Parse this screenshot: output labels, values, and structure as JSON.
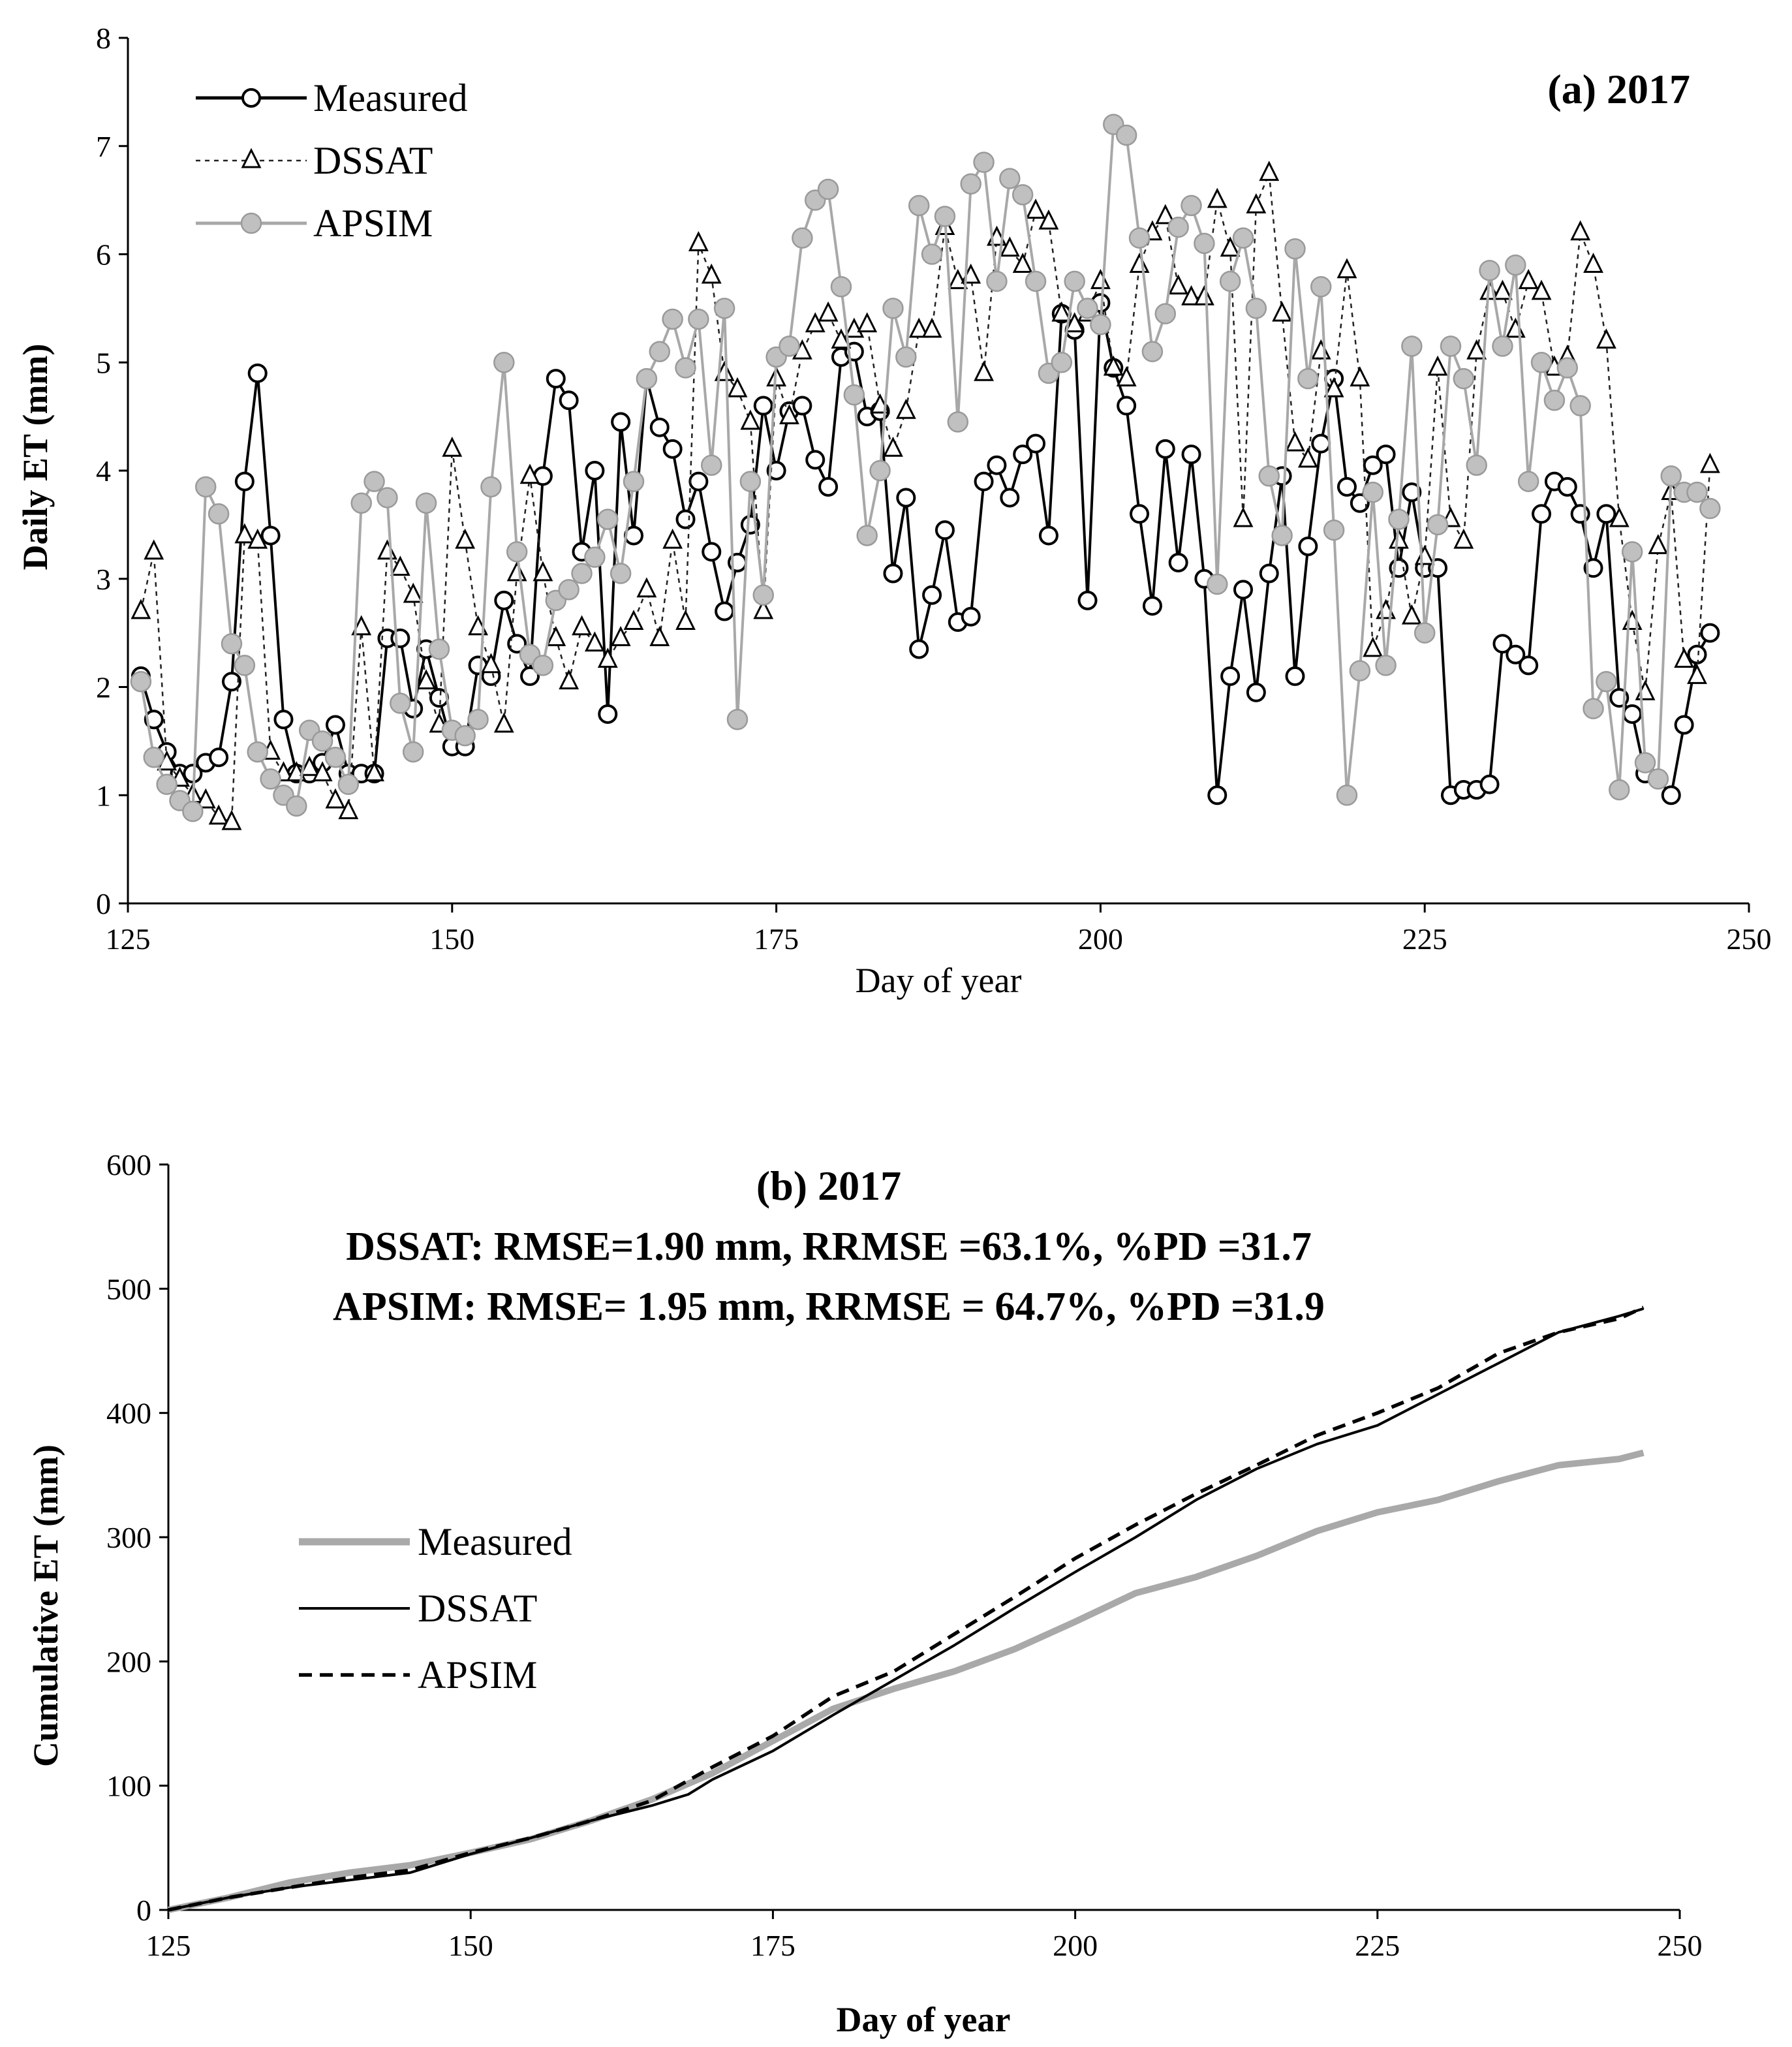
{
  "chart_data": [
    {
      "type": "line",
      "panel": "a",
      "title": "(a) 2017",
      "xlabel": "Day of year",
      "ylabel": "Daily ET (mm)",
      "xlim": [
        125,
        250
      ],
      "ylim": [
        0,
        8
      ],
      "xticks": [
        "125",
        "150",
        "175",
        "200",
        "225",
        "250"
      ],
      "yticks": [
        "0",
        "1",
        "2",
        "3",
        "4",
        "5",
        "6",
        "7",
        "8"
      ],
      "legend_position": "top-left",
      "legend": [
        "Measured",
        "DSSAT",
        "APSIM"
      ],
      "series": [
        {
          "name": "Measured",
          "style": "solid black line, open circle markers",
          "x": [
            126,
            127,
            128,
            129,
            130,
            131,
            132,
            133,
            134,
            135,
            136,
            137,
            138,
            139,
            140,
            141,
            142,
            143,
            144,
            145,
            146,
            147,
            148,
            149,
            150,
            151,
            152,
            153,
            154,
            155,
            156,
            157,
            158,
            159,
            160,
            161,
            162,
            163,
            164,
            165,
            166,
            167,
            168,
            169,
            170,
            171,
            172,
            173,
            174,
            175,
            176,
            177,
            178,
            179,
            180,
            181,
            182,
            183,
            184,
            185,
            186,
            187,
            188,
            189,
            190,
            191,
            192,
            193,
            194,
            195,
            196,
            197,
            198,
            199,
            200,
            201,
            202,
            203,
            204,
            205,
            206,
            207,
            208,
            209,
            210,
            211,
            212,
            213,
            214,
            215,
            216,
            217,
            218,
            219,
            220,
            221,
            222,
            223,
            224,
            225,
            226,
            227,
            228,
            229,
            230,
            231,
            232,
            233,
            234,
            235,
            236,
            237,
            238,
            239,
            240,
            241,
            242,
            243,
            244,
            245,
            246,
            247
          ],
          "values": [
            2.1,
            1.7,
            1.4,
            1.2,
            1.2,
            1.3,
            1.35,
            2.05,
            3.9,
            4.9,
            3.4,
            1.7,
            1.2,
            1.2,
            1.3,
            1.65,
            1.2,
            1.2,
            1.2,
            2.45,
            2.45,
            1.8,
            2.35,
            1.9,
            1.45,
            1.45,
            2.2,
            2.1,
            2.8,
            2.4,
            2.1,
            3.95,
            4.85,
            4.65,
            3.25,
            4.0,
            1.75,
            4.45,
            3.4,
            4.85,
            4.4,
            4.2,
            3.55,
            3.9,
            3.25,
            2.7,
            3.15,
            3.5,
            4.6,
            4.0,
            4.55,
            4.6,
            4.1,
            3.85,
            5.05,
            5.1,
            4.5,
            4.55,
            3.05,
            3.75,
            2.35,
            2.85,
            3.45,
            2.6,
            2.65,
            3.9,
            4.05,
            3.75,
            4.15,
            4.25,
            3.4,
            5.45,
            5.3,
            2.8,
            5.55,
            4.95,
            4.6,
            3.6,
            2.75,
            4.2,
            3.15,
            4.15,
            3.0,
            1.0,
            2.1,
            2.9,
            1.95,
            3.05,
            3.95,
            2.1,
            3.3,
            4.25,
            4.85,
            3.85,
            3.7,
            4.05,
            4.15,
            3.1,
            3.8,
            3.1,
            3.1,
            1.0,
            1.05,
            1.05,
            1.1,
            2.4,
            2.3,
            2.2,
            3.6,
            3.9,
            3.85,
            3.6,
            3.1,
            3.6,
            1.9,
            1.75,
            1.2,
            1.15,
            1.0,
            1.65,
            2.3,
            2.5
          ]
        },
        {
          "name": "DSSAT",
          "style": "dotted black line, open triangle markers",
          "x": [
            126,
            127,
            128,
            129,
            130,
            131,
            132,
            133,
            134,
            135,
            136,
            137,
            138,
            139,
            140,
            141,
            142,
            143,
            144,
            145,
            146,
            147,
            148,
            149,
            150,
            151,
            152,
            153,
            154,
            155,
            156,
            157,
            158,
            159,
            160,
            161,
            162,
            163,
            164,
            165,
            166,
            167,
            168,
            169,
            170,
            171,
            172,
            173,
            174,
            175,
            176,
            177,
            178,
            179,
            180,
            181,
            182,
            183,
            184,
            185,
            186,
            187,
            188,
            189,
            190,
            191,
            192,
            193,
            194,
            195,
            196,
            197,
            198,
            199,
            200,
            201,
            202,
            203,
            204,
            205,
            206,
            207,
            208,
            209,
            210,
            211,
            212,
            213,
            214,
            215,
            216,
            217,
            218,
            219,
            220,
            221,
            222,
            223,
            224,
            225,
            226,
            227,
            228,
            229,
            230,
            231,
            232,
            233,
            234,
            235,
            236,
            237,
            238,
            239,
            240,
            241,
            242,
            243,
            244,
            245,
            246,
            247
          ],
          "values": [
            2.7,
            3.25,
            1.3,
            1.15,
            1.0,
            0.95,
            0.8,
            0.75,
            3.4,
            3.35,
            1.4,
            1.2,
            1.2,
            1.25,
            1.2,
            0.95,
            0.85,
            2.55,
            1.2,
            3.25,
            3.1,
            2.85,
            2.05,
            1.65,
            4.2,
            3.35,
            2.55,
            2.2,
            1.65,
            3.05,
            3.95,
            3.05,
            2.45,
            2.05,
            2.55,
            2.4,
            2.25,
            2.45,
            2.6,
            2.9,
            2.45,
            3.35,
            2.6,
            6.1,
            5.8,
            4.9,
            4.75,
            4.45,
            2.7,
            4.85,
            4.5,
            5.1,
            5.35,
            5.45,
            5.2,
            5.3,
            5.35,
            4.6,
            4.2,
            4.55,
            5.3,
            5.3,
            6.25,
            5.75,
            5.8,
            4.9,
            6.15,
            6.05,
            5.9,
            6.4,
            6.3,
            5.45,
            5.35,
            5.45,
            5.75,
            4.95,
            4.85,
            5.9,
            6.2,
            6.35,
            5.7,
            5.6,
            5.6,
            6.5,
            6.05,
            3.55,
            6.45,
            6.75,
            5.45,
            4.25,
            4.1,
            5.1,
            4.75,
            5.85,
            4.85,
            2.35,
            2.7,
            3.35,
            2.65,
            3.2,
            4.95,
            3.55,
            3.35,
            5.1,
            5.65,
            5.65,
            5.3,
            5.75,
            5.65,
            4.95,
            5.05,
            6.2,
            5.9,
            5.2,
            3.55,
            2.6,
            1.95,
            3.3,
            3.8,
            2.25,
            2.1,
            4.05
          ]
        },
        {
          "name": "APSIM",
          "style": "solid gray line, filled gray circle markers",
          "x": [
            126,
            127,
            128,
            129,
            130,
            131,
            132,
            133,
            134,
            135,
            136,
            137,
            138,
            139,
            140,
            141,
            142,
            143,
            144,
            145,
            146,
            147,
            148,
            149,
            150,
            151,
            152,
            153,
            154,
            155,
            156,
            157,
            158,
            159,
            160,
            161,
            162,
            163,
            164,
            165,
            166,
            167,
            168,
            169,
            170,
            171,
            172,
            173,
            174,
            175,
            176,
            177,
            178,
            179,
            180,
            181,
            182,
            183,
            184,
            185,
            186,
            187,
            188,
            189,
            190,
            191,
            192,
            193,
            194,
            195,
            196,
            197,
            198,
            199,
            200,
            201,
            202,
            203,
            204,
            205,
            206,
            207,
            208,
            209,
            210,
            211,
            212,
            213,
            214,
            215,
            216,
            217,
            218,
            219,
            220,
            221,
            222,
            223,
            224,
            225,
            226,
            227,
            228,
            229,
            230,
            231,
            232,
            233,
            234,
            235,
            236,
            237,
            238,
            239,
            240,
            241,
            242,
            243,
            244,
            245,
            246,
            247
          ],
          "values": [
            2.05,
            1.35,
            1.1,
            0.95,
            0.85,
            3.85,
            3.6,
            2.4,
            2.2,
            1.4,
            1.15,
            1.0,
            0.9,
            1.6,
            1.5,
            1.35,
            1.1,
            3.7,
            3.9,
            3.75,
            1.85,
            1.4,
            3.7,
            2.35,
            1.6,
            1.55,
            1.7,
            3.85,
            5.0,
            3.25,
            2.3,
            2.2,
            2.8,
            2.9,
            3.05,
            3.2,
            3.55,
            3.05,
            3.9,
            4.85,
            5.1,
            5.4,
            4.95,
            5.4,
            4.05,
            5.5,
            1.7,
            3.9,
            2.85,
            5.05,
            5.15,
            6.15,
            6.5,
            6.6,
            5.7,
            4.7,
            3.4,
            4.0,
            5.5,
            5.05,
            6.45,
            6.0,
            6.35,
            4.45,
            6.65,
            6.85,
            5.75,
            6.7,
            6.55,
            5.75,
            4.9,
            5.0,
            5.75,
            5.5,
            5.35,
            7.2,
            7.1,
            6.15,
            5.1,
            5.45,
            6.25,
            6.45,
            6.1,
            2.95,
            5.75,
            6.15,
            5.5,
            3.95,
            3.4,
            6.05,
            4.85,
            5.7,
            3.45,
            1.0,
            2.15,
            3.8,
            2.2,
            3.55,
            5.15,
            2.5,
            3.5,
            5.15,
            4.85,
            4.05,
            5.85,
            5.15,
            5.9,
            3.9,
            5.0,
            4.65,
            4.95,
            4.6,
            1.8,
            2.05,
            1.05,
            3.25,
            1.3,
            1.15,
            3.95,
            3.8,
            3.8,
            3.65
          ]
        }
      ]
    },
    {
      "type": "line",
      "panel": "b",
      "title": "(b) 2017",
      "annotations": [
        "DSSAT: RMSE=1.90 mm, RRMSE =63.1%, %PD =31.7",
        "APSIM: RMSE= 1.95 mm, RRMSE = 64.7%, %PD =31.9"
      ],
      "xlabel": "Day of year",
      "ylabel": "Cumulative ET (mm)",
      "xlim": [
        125,
        250
      ],
      "ylim": [
        0,
        600
      ],
      "xticks": [
        "125",
        "150",
        "175",
        "200",
        "225",
        "250"
      ],
      "yticks": [
        "0",
        "100",
        "200",
        "300",
        "400",
        "500",
        "600"
      ],
      "legend_position": "middle-left",
      "legend": [
        "Measured",
        "DSSAT",
        "APSIM"
      ],
      "series": [
        {
          "name": "Measured",
          "style": "thick solid gray line",
          "x": [
            125,
            130,
            135,
            140,
            145,
            150,
            155,
            160,
            165,
            170,
            175,
            180,
            185,
            190,
            195,
            200,
            205,
            210,
            215,
            220,
            225,
            230,
            235,
            240,
            245,
            247
          ],
          "values": [
            0,
            10,
            22,
            30,
            36,
            46,
            57,
            72,
            89,
            110,
            136,
            162,
            178,
            192,
            210,
            232,
            255,
            268,
            285,
            305,
            320,
            330,
            345,
            358,
            363,
            368
          ]
        },
        {
          "name": "DSSAT",
          "style": "thin solid black line",
          "x": [
            125,
            130,
            135,
            140,
            145,
            150,
            155,
            160,
            165,
            168,
            170,
            175,
            180,
            185,
            190,
            195,
            200,
            205,
            210,
            215,
            220,
            225,
            230,
            235,
            240,
            245,
            247
          ],
          "values": [
            0,
            10,
            18,
            24,
            30,
            45,
            58,
            72,
            84,
            93,
            105,
            128,
            157,
            185,
            213,
            243,
            272,
            300,
            330,
            355,
            375,
            390,
            415,
            440,
            465,
            478,
            484
          ]
        },
        {
          "name": "APSIM",
          "style": "dashed black line",
          "x": [
            125,
            130,
            135,
            140,
            145,
            150,
            155,
            160,
            165,
            170,
            175,
            180,
            185,
            190,
            195,
            200,
            205,
            210,
            215,
            220,
            225,
            230,
            235,
            240,
            245,
            247
          ],
          "values": [
            0,
            10,
            18,
            26,
            32,
            46,
            58,
            72,
            88,
            115,
            140,
            172,
            192,
            222,
            252,
            283,
            310,
            335,
            358,
            382,
            400,
            420,
            448,
            465,
            476,
            485
          ]
        }
      ]
    }
  ]
}
